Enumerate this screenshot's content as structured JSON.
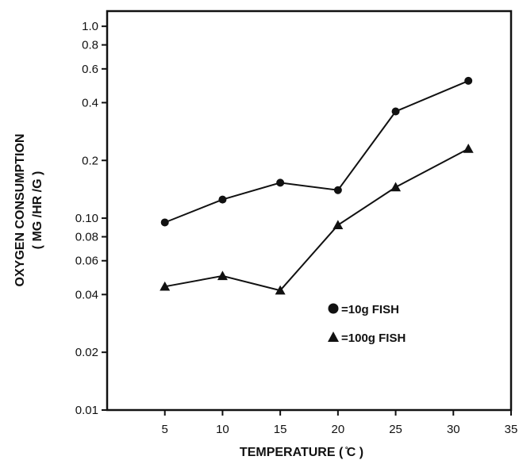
{
  "chart_data": {
    "type": "line",
    "xlabel": "TEMPERATURE ( ̊C )",
    "ylabel": "OXYGEN CONSUMPTION",
    "ylabel_units": "( MG /HR /G )",
    "x_scale": "linear",
    "y_scale": "log",
    "xlim": [
      0,
      35
    ],
    "ylim": [
      0.01,
      1.2
    ],
    "x_ticks": [
      5,
      10,
      15,
      20,
      25,
      30,
      35
    ],
    "y_ticks": [
      0.01,
      0.02,
      0.04,
      0.06,
      0.08,
      0.1,
      0.2,
      0.4,
      0.6,
      0.8,
      1.0
    ],
    "y_tick_labels": [
      "0.01",
      "0.02",
      "0.04",
      "0.06",
      "0.08",
      "0.10",
      "0.2",
      "0.4",
      "0.6",
      "0.8",
      "1.0"
    ],
    "grid": false,
    "legend_position": "bottom-right",
    "series": [
      {
        "name": "=10g  FISH",
        "marker": "circle",
        "x": [
          5,
          10,
          15,
          20,
          25,
          31.3
        ],
        "y": [
          0.095,
          0.125,
          0.153,
          0.14,
          0.36,
          0.52
        ]
      },
      {
        "name": "=100g  FISH",
        "marker": "triangle",
        "x": [
          5,
          10,
          15,
          20,
          25,
          31.3
        ],
        "y": [
          0.044,
          0.05,
          0.042,
          0.092,
          0.145,
          0.23
        ]
      }
    ]
  }
}
